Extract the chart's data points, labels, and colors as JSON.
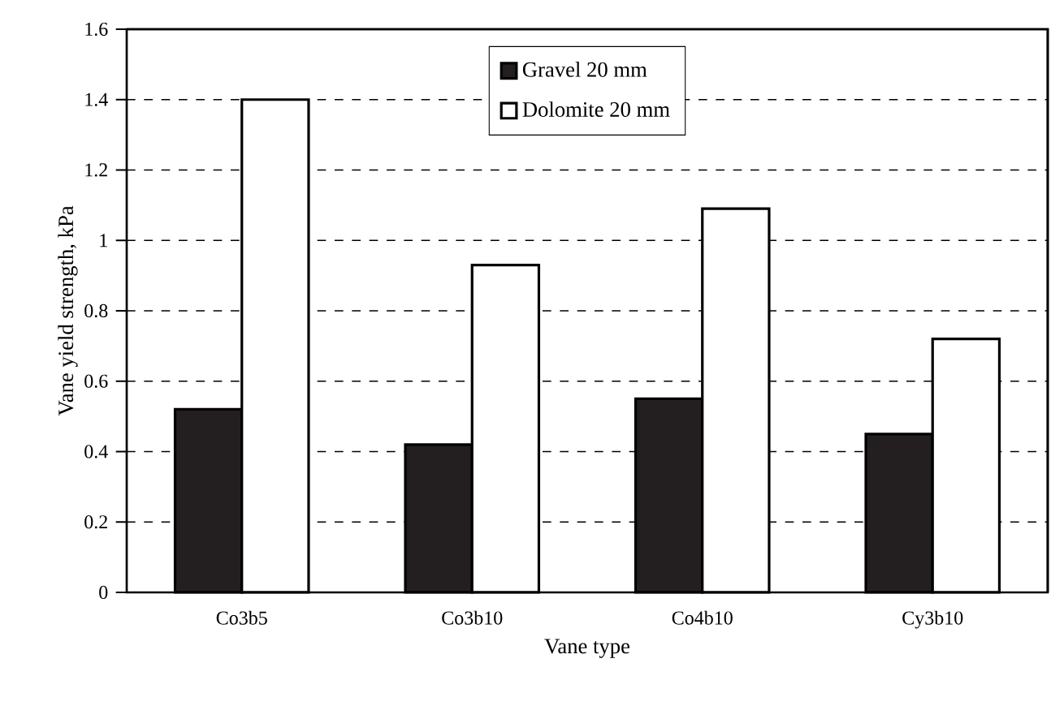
{
  "chart_data": {
    "type": "bar",
    "xlabel": "Vane type",
    "ylabel": "Vane yield strength, kPa",
    "categories": [
      "Co3b5",
      "Co3b10",
      "Co4b10",
      "Cy3b10"
    ],
    "series": [
      {
        "name": "Gravel 20 mm",
        "color": "#231f20",
        "values": [
          0.52,
          0.42,
          0.55,
          0.45
        ]
      },
      {
        "name": "Dolomite 20 mm",
        "color": "#ffffff",
        "values": [
          1.4,
          0.93,
          1.09,
          0.72
        ]
      }
    ],
    "ylim": [
      0,
      1.6
    ],
    "yticks": [
      0,
      0.2,
      0.4,
      0.6,
      0.8,
      1,
      1.2,
      1.4,
      1.6
    ],
    "grid": "y",
    "legend": "top"
  }
}
